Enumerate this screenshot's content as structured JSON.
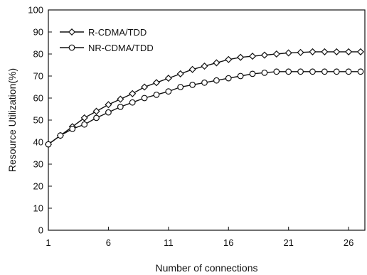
{
  "chart_data": {
    "type": "line",
    "xlabel": "Number of connections",
    "ylabel": "Resource Utilization(%)",
    "xlim": [
      1,
      27
    ],
    "ylim": [
      0,
      100
    ],
    "x_ticks": [
      1,
      6,
      11,
      16,
      21,
      26
    ],
    "y_ticks": [
      0,
      10,
      20,
      30,
      40,
      50,
      60,
      70,
      80,
      90,
      100
    ],
    "grid": false,
    "legend_position": "top-left",
    "x": [
      1,
      2,
      3,
      4,
      5,
      6,
      7,
      8,
      9,
      10,
      11,
      12,
      13,
      14,
      15,
      16,
      17,
      18,
      19,
      20,
      21,
      22,
      23,
      24,
      25,
      26,
      27
    ],
    "series": [
      {
        "name": "R-CDMA/TDD",
        "marker": "diamond",
        "values": [
          39,
          43,
          47,
          51,
          54,
          57,
          59.5,
          62,
          65,
          67,
          69,
          71,
          73,
          74.5,
          76,
          77.5,
          78.5,
          79,
          79.5,
          80,
          80.5,
          80.7,
          81,
          81,
          81,
          81,
          81
        ]
      },
      {
        "name": "NR-CDMA/TDD",
        "marker": "circle",
        "values": [
          39,
          43,
          46,
          48,
          51,
          53.5,
          56,
          58,
          60,
          61.5,
          63,
          65,
          66,
          67,
          68,
          69,
          70,
          71,
          71.5,
          72,
          72,
          72,
          72,
          72,
          72,
          72,
          72
        ]
      }
    ],
    "colors": {
      "line": "#111111",
      "marker_fill": "#ffffff"
    }
  }
}
